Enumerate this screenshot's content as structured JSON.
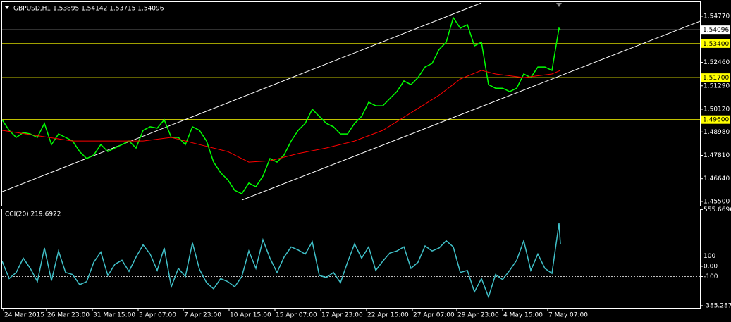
{
  "chart_data": [
    {
      "type": "line",
      "title": "GBPUSD,H1  1.53895 1.54142 1.53715 1.54096",
      "x": [
        0,
        10,
        20,
        30,
        40,
        50,
        60,
        70,
        80,
        90,
        100,
        110,
        120,
        130,
        140,
        150,
        160,
        170,
        180,
        190,
        200,
        210,
        220,
        230,
        240,
        250,
        260,
        270,
        280,
        290,
        300,
        310,
        320,
        330,
        340,
        350,
        360,
        370,
        380,
        390,
        400,
        410,
        420,
        430,
        440,
        450,
        460,
        470,
        480,
        490,
        500,
        510,
        520,
        530,
        540,
        550,
        560,
        570,
        580,
        590,
        600,
        610,
        620,
        630,
        640,
        650,
        660,
        670,
        680,
        690,
        700,
        710,
        720,
        730,
        740,
        750,
        760,
        770,
        780,
        790,
        792
      ],
      "series": [
        {
          "color": "#00ff00",
          "values": [
            1.4959,
            1.4906,
            1.4871,
            1.4895,
            1.4888,
            1.4871,
            1.4941,
            1.4835,
            1.4888,
            1.4871,
            1.4853,
            1.48,
            1.4765,
            1.4783,
            1.4835,
            1.48,
            1.4818,
            1.4835,
            1.4853,
            1.4818,
            1.4906,
            1.4924,
            1.4917,
            1.4959,
            1.4871,
            1.4871,
            1.4835,
            1.4924,
            1.4906,
            1.4853,
            1.4747,
            1.4694,
            1.4659,
            1.4606,
            1.4589,
            1.4642,
            1.4624,
            1.4677,
            1.4765,
            1.4747,
            1.4783,
            1.4853,
            1.4906,
            1.4941,
            1.5012,
            1.4976,
            1.4941,
            1.4924,
            1.4888,
            1.4888,
            1.4941,
            1.4976,
            1.5047,
            1.5029,
            1.5029,
            1.5065,
            1.51,
            1.5153,
            1.5135,
            1.517,
            1.5223,
            1.5241,
            1.5311,
            1.5347,
            1.547,
            1.5417,
            1.5435,
            1.5329,
            1.5347,
            1.5135,
            1.5117,
            1.5117,
            1.51,
            1.5117,
            1.5188,
            1.517,
            1.5223,
            1.5223,
            1.5206,
            1.5417,
            1.54096
          ]
        },
        {
          "color": "#ff0000",
          "x": [
            0,
            100,
            200,
            240,
            280,
            320,
            350,
            380,
            420,
            460,
            500,
            540,
            580,
            620,
            650,
            680,
            700,
            740,
            780,
            792
          ],
          "values": [
            1.4906,
            1.4853,
            1.4853,
            1.4871,
            1.4835,
            1.48,
            1.4747,
            1.4754,
            1.479,
            1.4818,
            1.4853,
            1.4906,
            1.4994,
            1.5082,
            1.5163,
            1.5206,
            1.5188,
            1.517,
            1.5188,
            1.5206
          ]
        }
      ],
      "trendlines": [
        {
          "x": [
            0,
            680
          ],
          "values": [
            1.4599,
            1.5544
          ]
        },
        {
          "x": [
            340,
            990
          ],
          "values": [
            1.4557,
            1.5452
          ]
        }
      ],
      "levels": [
        {
          "value": 1.534,
          "label": "1.53400"
        },
        {
          "value": 1.517,
          "label": "1.51700"
        },
        {
          "value": 1.496,
          "label": "1.49600"
        }
      ],
      "level_color": "#ffff00",
      "price_line": {
        "value": 1.54096,
        "label": "1.54096"
      },
      "xlim": [
        0,
        990
      ],
      "ylim": [
        1.4529,
        1.5544
      ],
      "yticks": [
        {
          "value": 1.5477,
          "label": "1.54770"
        },
        {
          "value": 1.5246,
          "label": "1.52460"
        },
        {
          "value": 1.5129,
          "label": "1.51290"
        },
        {
          "value": 1.5012,
          "label": "1.50120"
        },
        {
          "value": 1.4898,
          "label": "1.48980"
        },
        {
          "value": 1.4781,
          "label": "1.47810"
        },
        {
          "value": 1.4664,
          "label": "1.46640"
        },
        {
          "value": 1.455,
          "label": "1.45500"
        }
      ]
    },
    {
      "type": "line",
      "title": "CCI(20) 219.6922",
      "x": [
        0,
        10,
        20,
        30,
        40,
        50,
        60,
        70,
        80,
        90,
        100,
        110,
        120,
        130,
        140,
        150,
        160,
        170,
        180,
        190,
        200,
        210,
        220,
        230,
        240,
        250,
        260,
        270,
        280,
        290,
        300,
        310,
        320,
        330,
        340,
        350,
        360,
        370,
        380,
        390,
        400,
        410,
        420,
        430,
        440,
        450,
        460,
        470,
        480,
        490,
        500,
        510,
        520,
        530,
        540,
        550,
        560,
        570,
        580,
        590,
        600,
        610,
        620,
        630,
        640,
        650,
        660,
        670,
        680,
        690,
        700,
        710,
        720,
        730,
        740,
        750,
        760,
        770,
        780,
        790,
        792
      ],
      "series": [
        {
          "color": "#40c0c8",
          "values": [
            50,
            -120,
            -60,
            80,
            -20,
            -150,
            180,
            -140,
            150,
            -60,
            -80,
            -180,
            -150,
            40,
            140,
            -90,
            20,
            60,
            -50,
            90,
            210,
            120,
            -40,
            180,
            -200,
            -20,
            -100,
            230,
            -30,
            -160,
            -220,
            -120,
            -150,
            -200,
            -100,
            150,
            -20,
            260,
            80,
            -60,
            90,
            190,
            160,
            120,
            240,
            -90,
            -110,
            -60,
            -160,
            40,
            220,
            80,
            190,
            -40,
            50,
            130,
            150,
            190,
            -20,
            40,
            200,
            150,
            180,
            250,
            190,
            -60,
            -40,
            -250,
            -120,
            -300,
            -80,
            -130,
            -40,
            60,
            250,
            -40,
            120,
            -20,
            -70,
            420,
            219.6922
          ]
        }
      ],
      "levels": [
        100,
        -100
      ],
      "xlim": [
        0,
        990
      ],
      "ylim": [
        -406.9,
        565.5
      ],
      "yticks": [
        555.6696,
        100,
        {
          "value": 0,
          "label": "0.00"
        },
        -100,
        -385.2873
      ],
      "xticks": [
        {
          "value": 2,
          "label": "24 Mar 2015"
        },
        {
          "value": 63,
          "label": "26 Mar 23:00"
        },
        {
          "value": 128,
          "label": "31 Mar 15:00"
        },
        {
          "value": 193,
          "label": "3 Apr 07:00"
        },
        {
          "value": 257,
          "label": "7 Apr 23:00"
        },
        {
          "value": 322,
          "label": "10 Apr 15:00"
        },
        {
          "value": 387,
          "label": "15 Apr 07:00"
        },
        {
          "value": 452,
          "label": "17 Apr 23:00"
        },
        {
          "value": 517,
          "label": "22 Apr 15:00"
        },
        {
          "value": 582,
          "label": "27 Apr 07:00"
        },
        {
          "value": 645,
          "label": "29 Apr 23:00"
        },
        {
          "value": 710,
          "label": "4 May 15:00"
        },
        {
          "value": 774,
          "label": "7 May 07:00"
        }
      ]
    }
  ]
}
